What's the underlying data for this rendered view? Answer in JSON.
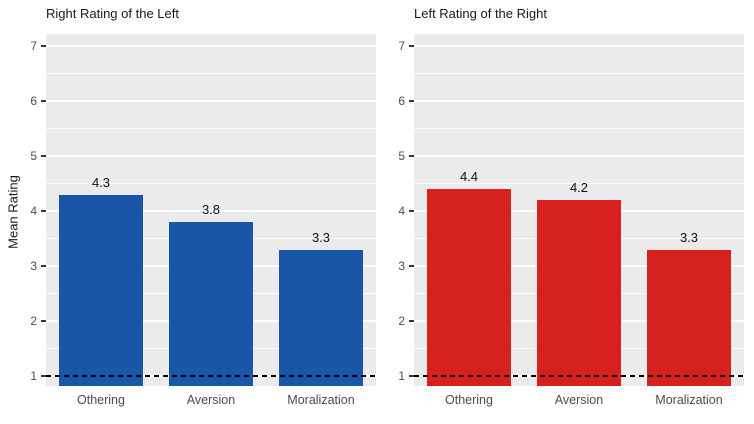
{
  "axis": {
    "ylabel": "Mean Rating",
    "y_ticks": [
      1,
      2,
      3,
      4,
      5,
      6,
      7
    ],
    "ylim_display": [
      1,
      7
    ]
  },
  "reference_line": {
    "y": 1,
    "style": "dashed",
    "color": "#000000"
  },
  "chart_data": [
    {
      "type": "bar",
      "title": "Right Rating of the Left",
      "categories": [
        "Othering",
        "Aversion",
        "Moralization"
      ],
      "values": [
        4.3,
        3.8,
        3.3
      ],
      "value_labels": [
        "4.3",
        "3.8",
        "3.3"
      ],
      "bar_color": "#1A56A8",
      "ylabel": "Mean Rating",
      "ylim": [
        1,
        7
      ],
      "hline": 1,
      "panel_background": "#EBEBEB",
      "grid": "white major and minor horizontal gridlines",
      "legend": "none"
    },
    {
      "type": "bar",
      "title": "Left Rating of the Right",
      "categories": [
        "Othering",
        "Aversion",
        "Moralization"
      ],
      "values": [
        4.4,
        4.2,
        3.3
      ],
      "value_labels": [
        "4.4",
        "4.2",
        "3.3"
      ],
      "bar_color": "#D7211E",
      "ylabel": "Mean Rating",
      "ylim": [
        1,
        7
      ],
      "hline": 1,
      "panel_background": "#EBEBEB",
      "grid": "white major and minor horizontal gridlines",
      "legend": "none"
    }
  ]
}
